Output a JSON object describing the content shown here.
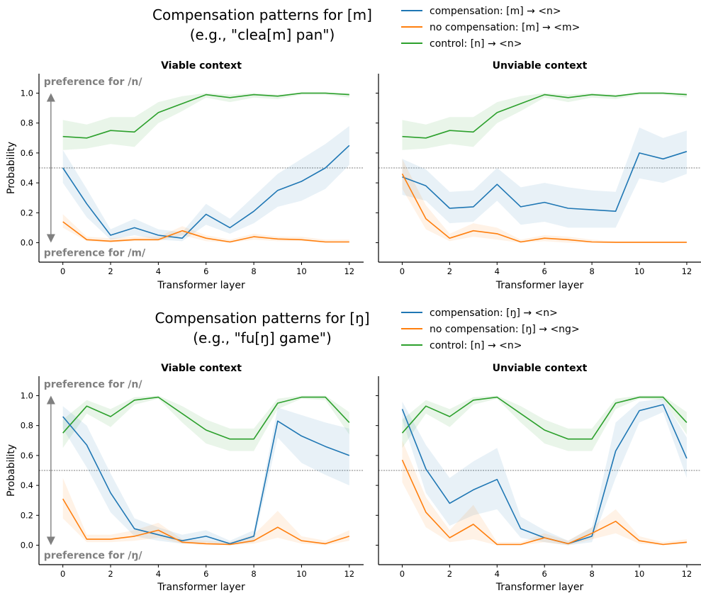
{
  "chart_data": [
    {
      "type": "line",
      "figure_title_lines": [
        "Compensation patterns for [m]",
        "(e.g., \"clea[m] pan\")"
      ],
      "legend": [
        "compensation: [m] → <n>",
        "no compensation: [m] → <m>",
        "control: [n] → <n>"
      ],
      "preference_top": "preference for /n/",
      "preference_bottom": "preference for /m/",
      "xlabel": "Transformer layer",
      "ylabel": "Probability",
      "xlim": [
        -1,
        12.6
      ],
      "ylim": [
        -0.13,
        1.13
      ],
      "xticks": [
        0,
        2,
        4,
        6,
        8,
        10,
        12
      ],
      "yticks": [
        0.0,
        0.2,
        0.4,
        0.6,
        0.8,
        1.0
      ],
      "ytick_labels": [
        "0.0",
        "0.2",
        "0.4",
        "0.6",
        "0.8",
        "1.0"
      ],
      "reference_line": 0.5,
      "x": [
        0,
        1,
        2,
        3,
        4,
        5,
        6,
        7,
        8,
        9,
        10,
        11,
        12
      ],
      "colors": [
        "#1f77b4",
        "#ff7f0e",
        "#2ca02c"
      ],
      "panels": [
        {
          "title": "Viable context",
          "series": [
            {
              "name": "compensation: [m] → <n>",
              "values": [
                0.5,
                0.26,
                0.05,
                0.1,
                0.05,
                0.03,
                0.19,
                0.1,
                0.21,
                0.35,
                0.41,
                0.5,
                0.65
              ],
              "lower": [
                0.4,
                0.17,
                0.02,
                0.05,
                0.02,
                0.01,
                0.12,
                0.06,
                0.13,
                0.24,
                0.28,
                0.36,
                0.52
              ],
              "upper": [
                0.62,
                0.36,
                0.09,
                0.16,
                0.09,
                0.07,
                0.26,
                0.16,
                0.31,
                0.46,
                0.56,
                0.66,
                0.78
              ]
            },
            {
              "name": "no compensation: [m] → <m>",
              "values": [
                0.14,
                0.02,
                0.01,
                0.02,
                0.02,
                0.08,
                0.03,
                0.005,
                0.04,
                0.025,
                0.02,
                0.005,
                0.005
              ],
              "lower": [
                0.1,
                0.01,
                0.0,
                0.01,
                0.01,
                0.05,
                0.01,
                0.0,
                0.02,
                0.01,
                0.01,
                0.0,
                0.0
              ],
              "upper": [
                0.19,
                0.04,
                0.03,
                0.04,
                0.04,
                0.11,
                0.05,
                0.02,
                0.06,
                0.04,
                0.04,
                0.02,
                0.02
              ]
            },
            {
              "name": "control: [n] → <n>",
              "values": [
                0.71,
                0.7,
                0.75,
                0.74,
                0.87,
                0.93,
                0.99,
                0.97,
                0.99,
                0.98,
                1.0,
                1.0,
                0.99
              ],
              "lower": [
                0.62,
                0.63,
                0.66,
                0.64,
                0.8,
                0.88,
                0.97,
                0.94,
                0.97,
                0.96,
                0.99,
                0.99,
                0.97
              ],
              "upper": [
                0.82,
                0.79,
                0.84,
                0.84,
                0.94,
                0.98,
                1.0,
                0.99,
                1.0,
                0.99,
                1.0,
                1.0,
                1.0
              ]
            }
          ]
        },
        {
          "title": "Unviable context",
          "series": [
            {
              "name": "compensation: [m] → <n>",
              "values": [
                0.44,
                0.38,
                0.23,
                0.24,
                0.39,
                0.24,
                0.27,
                0.23,
                0.22,
                0.21,
                0.6,
                0.56,
                0.61
              ],
              "lower": [
                0.32,
                0.28,
                0.13,
                0.14,
                0.28,
                0.12,
                0.14,
                0.1,
                0.1,
                0.1,
                0.43,
                0.4,
                0.46
              ],
              "upper": [
                0.56,
                0.49,
                0.34,
                0.35,
                0.5,
                0.37,
                0.4,
                0.37,
                0.35,
                0.34,
                0.77,
                0.7,
                0.75
              ]
            },
            {
              "name": "no compensation: [m] → <m>",
              "values": [
                0.46,
                0.16,
                0.03,
                0.08,
                0.06,
                0.005,
                0.03,
                0.02,
                0.005,
                0.002,
                0.002,
                0.002,
                0.002
              ],
              "lower": [
                0.36,
                0.09,
                0.01,
                0.04,
                0.02,
                0.0,
                0.01,
                0.0,
                0.0,
                0.0,
                0.0,
                0.0,
                0.0
              ],
              "upper": [
                0.56,
                0.25,
                0.06,
                0.13,
                0.1,
                0.02,
                0.05,
                0.04,
                0.02,
                0.01,
                0.01,
                0.01,
                0.01
              ]
            },
            {
              "name": "control: [n] → <n>",
              "values": [
                0.71,
                0.7,
                0.75,
                0.74,
                0.87,
                0.93,
                0.99,
                0.97,
                0.99,
                0.98,
                1.0,
                1.0,
                0.99
              ],
              "lower": [
                0.62,
                0.63,
                0.66,
                0.64,
                0.8,
                0.88,
                0.97,
                0.94,
                0.97,
                0.96,
                0.99,
                0.99,
                0.97
              ],
              "upper": [
                0.82,
                0.79,
                0.84,
                0.84,
                0.94,
                0.98,
                1.0,
                0.99,
                1.0,
                0.99,
                1.0,
                1.0,
                1.0
              ]
            }
          ]
        }
      ]
    },
    {
      "type": "line",
      "figure_title_lines": [
        "Compensation patterns for [ŋ]",
        "(e.g., \"fu[ŋ] game\")"
      ],
      "legend": [
        "compensation: [ŋ] → <n>",
        "no compensation: [ŋ] → <ng>",
        "control: [n] → <n>"
      ],
      "preference_top": "preference for /n/",
      "preference_bottom": "preference for /ŋ/",
      "xlabel": "Transformer layer",
      "ylabel": "Probability",
      "xlim": [
        -1,
        12.6
      ],
      "ylim": [
        -0.13,
        1.13
      ],
      "xticks": [
        0,
        2,
        4,
        6,
        8,
        10,
        12
      ],
      "yticks": [
        0.0,
        0.2,
        0.4,
        0.6,
        0.8,
        1.0
      ],
      "ytick_labels": [
        "0.0",
        "0.2",
        "0.4",
        "0.6",
        "0.8",
        "1.0"
      ],
      "reference_line": 0.5,
      "x": [
        0,
        1,
        2,
        3,
        4,
        5,
        6,
        7,
        8,
        9,
        10,
        11,
        12
      ],
      "colors": [
        "#1f77b4",
        "#ff7f0e",
        "#2ca02c"
      ],
      "panels": [
        {
          "title": "Viable context",
          "series": [
            {
              "name": "compensation: [ŋ] → <n>",
              "values": [
                0.86,
                0.67,
                0.35,
                0.11,
                0.07,
                0.03,
                0.06,
                0.01,
                0.06,
                0.83,
                0.73,
                0.66,
                0.6
              ],
              "lower": [
                0.78,
                0.52,
                0.22,
                0.06,
                0.03,
                0.01,
                0.02,
                0.0,
                0.02,
                0.72,
                0.55,
                0.47,
                0.4
              ],
              "upper": [
                0.93,
                0.8,
                0.48,
                0.18,
                0.12,
                0.07,
                0.1,
                0.03,
                0.1,
                0.92,
                0.87,
                0.82,
                0.78
              ]
            },
            {
              "name": "no compensation: [ŋ] → <ng>",
              "values": [
                0.31,
                0.04,
                0.04,
                0.06,
                0.1,
                0.02,
                0.01,
                0.005,
                0.03,
                0.12,
                0.03,
                0.01,
                0.06
              ],
              "lower": [
                0.18,
                0.02,
                0.02,
                0.03,
                0.05,
                0.01,
                0.0,
                0.0,
                0.01,
                0.05,
                0.01,
                0.0,
                0.03
              ],
              "upper": [
                0.45,
                0.07,
                0.07,
                0.1,
                0.15,
                0.04,
                0.03,
                0.02,
                0.07,
                0.23,
                0.06,
                0.03,
                0.1
              ]
            },
            {
              "name": "control: [n] → <n>",
              "values": [
                0.75,
                0.93,
                0.86,
                0.97,
                0.99,
                0.88,
                0.77,
                0.71,
                0.71,
                0.95,
                0.99,
                0.99,
                0.82
              ],
              "lower": [
                0.65,
                0.88,
                0.79,
                0.94,
                0.98,
                0.82,
                0.68,
                0.63,
                0.63,
                0.91,
                0.98,
                0.97,
                0.74
              ],
              "upper": [
                0.84,
                0.97,
                0.91,
                0.99,
                1.0,
                0.93,
                0.84,
                0.78,
                0.78,
                0.98,
                1.0,
                1.0,
                0.89
              ]
            }
          ]
        },
        {
          "title": "Unviable context",
          "series": [
            {
              "name": "compensation: [ŋ] → <n>",
              "values": [
                0.91,
                0.51,
                0.28,
                0.37,
                0.44,
                0.11,
                0.05,
                0.01,
                0.06,
                0.63,
                0.9,
                0.94,
                0.58
              ],
              "lower": [
                0.84,
                0.35,
                0.13,
                0.2,
                0.24,
                0.05,
                0.02,
                0.0,
                0.02,
                0.45,
                0.82,
                0.89,
                0.45
              ],
              "upper": [
                0.96,
                0.67,
                0.45,
                0.56,
                0.65,
                0.19,
                0.1,
                0.03,
                0.12,
                0.82,
                0.96,
                0.98,
                0.72
              ]
            },
            {
              "name": "no compensation: [ŋ] → <ng>",
              "values": [
                0.57,
                0.22,
                0.05,
                0.14,
                0.005,
                0.005,
                0.05,
                0.01,
                0.08,
                0.16,
                0.03,
                0.005,
                0.02
              ],
              "lower": [
                0.42,
                0.12,
                0.02,
                0.04,
                0.0,
                0.0,
                0.02,
                0.0,
                0.04,
                0.08,
                0.01,
                0.0,
                0.01
              ],
              "upper": [
                0.7,
                0.32,
                0.1,
                0.27,
                0.02,
                0.02,
                0.08,
                0.03,
                0.12,
                0.24,
                0.06,
                0.02,
                0.04
              ]
            },
            {
              "name": "control: [n] → <n>",
              "values": [
                0.75,
                0.93,
                0.86,
                0.97,
                0.99,
                0.88,
                0.77,
                0.71,
                0.71,
                0.95,
                0.99,
                0.99,
                0.82
              ],
              "lower": [
                0.65,
                0.88,
                0.79,
                0.94,
                0.98,
                0.82,
                0.68,
                0.63,
                0.63,
                0.91,
                0.98,
                0.97,
                0.74
              ],
              "upper": [
                0.84,
                0.97,
                0.91,
                0.99,
                1.0,
                0.93,
                0.84,
                0.78,
                0.78,
                0.98,
                1.0,
                1.0,
                0.89
              ]
            }
          ]
        }
      ]
    }
  ]
}
